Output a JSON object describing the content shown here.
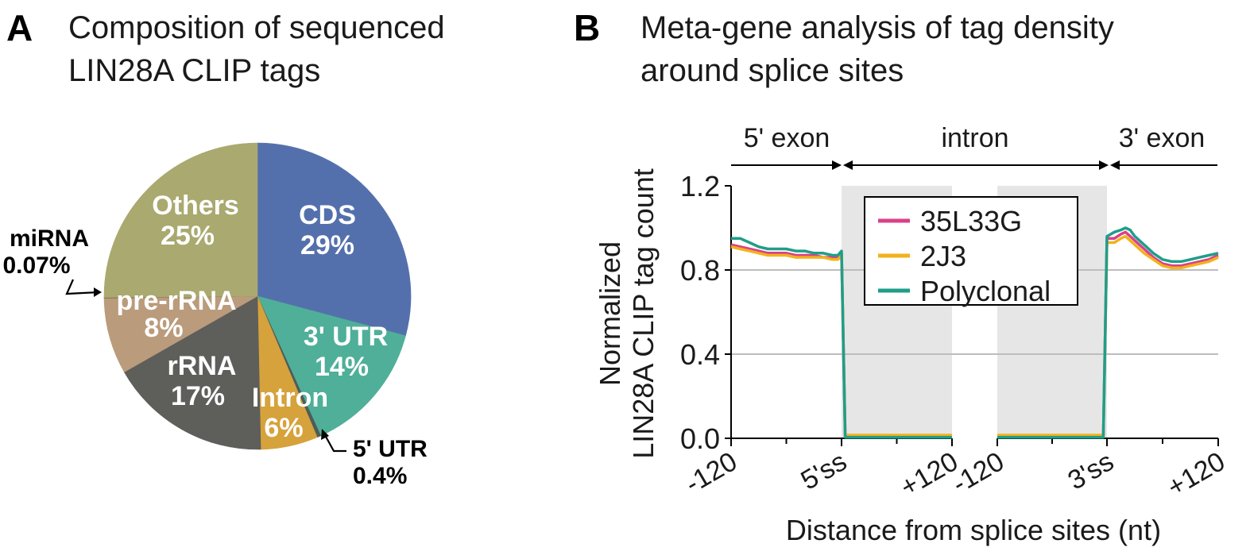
{
  "panel_a": {
    "letter": "A",
    "title_line1": "Composition of sequenced",
    "title_line2": "LIN28A CLIP tags"
  },
  "panel_b": {
    "letter": "B",
    "title_line1": "Meta-gene analysis of tag density",
    "title_line2": "around splice sites"
  },
  "chart_data": [
    {
      "type": "pie",
      "title": "Composition of sequenced LIN28A CLIP tags",
      "start": "12 o'clock, clockwise",
      "slices": [
        {
          "label": "CDS",
          "value_label": "29%",
          "value": 29,
          "color": "#5470ac",
          "text_color": "#ffffff"
        },
        {
          "label": "3' UTR",
          "value_label": "14%",
          "value": 14,
          "color": "#4faf98",
          "text_color": "#ffffff"
        },
        {
          "label": "5' UTR",
          "value_label": "0.4%",
          "value": 0.4,
          "color": "#4e5c5a",
          "text_color": "#000000",
          "callout": true
        },
        {
          "label": "Intron",
          "value_label": "6%",
          "value": 6,
          "color": "#d6a23b",
          "text_color": "#ffffff"
        },
        {
          "label": "rRNA",
          "value_label": "17%",
          "value": 17,
          "color": "#5e5e5b",
          "text_color": "#ffffff"
        },
        {
          "label": "pre-rRNA",
          "value_label": "8%",
          "value": 8,
          "color": "#ba9b7c",
          "text_color": "#ffffff"
        },
        {
          "label": "miRNA",
          "value_label": "0.07%",
          "value": 0.07,
          "color": "#7a6b4a",
          "text_color": "#000000",
          "callout": true
        },
        {
          "label": "Others",
          "value_label": "25%",
          "value": 25,
          "color": "#a9a970",
          "text_color": "#ffffff"
        }
      ]
    },
    {
      "type": "line",
      "title": "Meta-gene analysis of tag density around splice sites",
      "xlabel": "Distance from splice sites (nt)",
      "ylabel_line1": "Normalized",
      "ylabel_line2": "LIN28A CLIP tag count",
      "ylim": [
        0,
        1.2
      ],
      "yticks": [
        0.0,
        0.4,
        0.8,
        1.2
      ],
      "ytick_labels": [
        "0.0",
        "0.4",
        "0.8",
        "1.2"
      ],
      "grid": "horizontal at 0.4 and 0.8",
      "legend_position": "top-center",
      "regions": [
        "5' exon",
        "intron",
        "3' exon"
      ],
      "segments": [
        {
          "name": "5' splice site",
          "ticks": [
            "-120",
            "5'ss",
            "+120"
          ],
          "x": [
            -120,
            120
          ],
          "shaded": [
            0,
            120
          ]
        },
        {
          "name": "3' splice site",
          "ticks": [
            "-120",
            "3'ss",
            "+120"
          ],
          "x": [
            -120,
            120
          ],
          "shaded": [
            -120,
            0
          ]
        }
      ],
      "series": [
        {
          "name": "35L33G",
          "color": "#d9418a",
          "seg1": [
            [
              -120,
              0.92
            ],
            [
              -110,
              0.91
            ],
            [
              -100,
              0.9
            ],
            [
              -90,
              0.89
            ],
            [
              -80,
              0.88
            ],
            [
              -70,
              0.88
            ],
            [
              -60,
              0.88
            ],
            [
              -50,
              0.87
            ],
            [
              -40,
              0.87
            ],
            [
              -30,
              0.87
            ],
            [
              -20,
              0.86
            ],
            [
              -10,
              0.86
            ],
            [
              -4,
              0.86
            ],
            [
              -2,
              0.87
            ],
            [
              0,
              0.88
            ],
            [
              4,
              0.01
            ],
            [
              120,
              0.01
            ]
          ],
          "seg2": [
            [
              -120,
              0.01
            ],
            [
              -4,
              0.01
            ],
            [
              0,
              0.95
            ],
            [
              8,
              0.95
            ],
            [
              15,
              0.97
            ],
            [
              20,
              0.98
            ],
            [
              25,
              0.96
            ],
            [
              30,
              0.94
            ],
            [
              40,
              0.9
            ],
            [
              50,
              0.86
            ],
            [
              60,
              0.83
            ],
            [
              70,
              0.82
            ],
            [
              80,
              0.82
            ],
            [
              90,
              0.83
            ],
            [
              100,
              0.84
            ],
            [
              110,
              0.85
            ],
            [
              120,
              0.87
            ]
          ]
        },
        {
          "name": "2J3",
          "color": "#f2b21c",
          "seg1": [
            [
              -120,
              0.91
            ],
            [
              -110,
              0.9
            ],
            [
              -100,
              0.89
            ],
            [
              -90,
              0.88
            ],
            [
              -80,
              0.87
            ],
            [
              -70,
              0.87
            ],
            [
              -60,
              0.87
            ],
            [
              -50,
              0.86
            ],
            [
              -40,
              0.86
            ],
            [
              -30,
              0.86
            ],
            [
              -20,
              0.86
            ],
            [
              -10,
              0.85
            ],
            [
              -4,
              0.85
            ],
            [
              -2,
              0.86
            ],
            [
              0,
              0.87
            ],
            [
              4,
              0.015
            ],
            [
              120,
              0.015
            ]
          ],
          "seg2": [
            [
              -120,
              0.015
            ],
            [
              -4,
              0.015
            ],
            [
              0,
              0.93
            ],
            [
              8,
              0.93
            ],
            [
              15,
              0.95
            ],
            [
              20,
              0.96
            ],
            [
              25,
              0.94
            ],
            [
              30,
              0.92
            ],
            [
              40,
              0.88
            ],
            [
              50,
              0.85
            ],
            [
              60,
              0.82
            ],
            [
              70,
              0.81
            ],
            [
              80,
              0.81
            ],
            [
              90,
              0.82
            ],
            [
              100,
              0.83
            ],
            [
              110,
              0.84
            ],
            [
              120,
              0.86
            ]
          ]
        },
        {
          "name": "Polyclonal",
          "color": "#1f9e89",
          "seg1": [
            [
              -120,
              0.95
            ],
            [
              -110,
              0.95
            ],
            [
              -100,
              0.93
            ],
            [
              -90,
              0.91
            ],
            [
              -80,
              0.9
            ],
            [
              -70,
              0.9
            ],
            [
              -60,
              0.9
            ],
            [
              -50,
              0.89
            ],
            [
              -40,
              0.89
            ],
            [
              -30,
              0.88
            ],
            [
              -20,
              0.88
            ],
            [
              -10,
              0.87
            ],
            [
              -4,
              0.87
            ],
            [
              -2,
              0.88
            ],
            [
              0,
              0.89
            ],
            [
              4,
              0.005
            ],
            [
              120,
              0.005
            ]
          ],
          "seg2": [
            [
              -120,
              0.005
            ],
            [
              -4,
              0.005
            ],
            [
              0,
              0.96
            ],
            [
              8,
              0.98
            ],
            [
              15,
              0.99
            ],
            [
              20,
              1.0
            ],
            [
              25,
              0.99
            ],
            [
              30,
              0.96
            ],
            [
              40,
              0.92
            ],
            [
              50,
              0.88
            ],
            [
              60,
              0.85
            ],
            [
              70,
              0.84
            ],
            [
              80,
              0.84
            ],
            [
              90,
              0.85
            ],
            [
              100,
              0.86
            ],
            [
              110,
              0.87
            ],
            [
              120,
              0.88
            ]
          ]
        }
      ]
    }
  ]
}
